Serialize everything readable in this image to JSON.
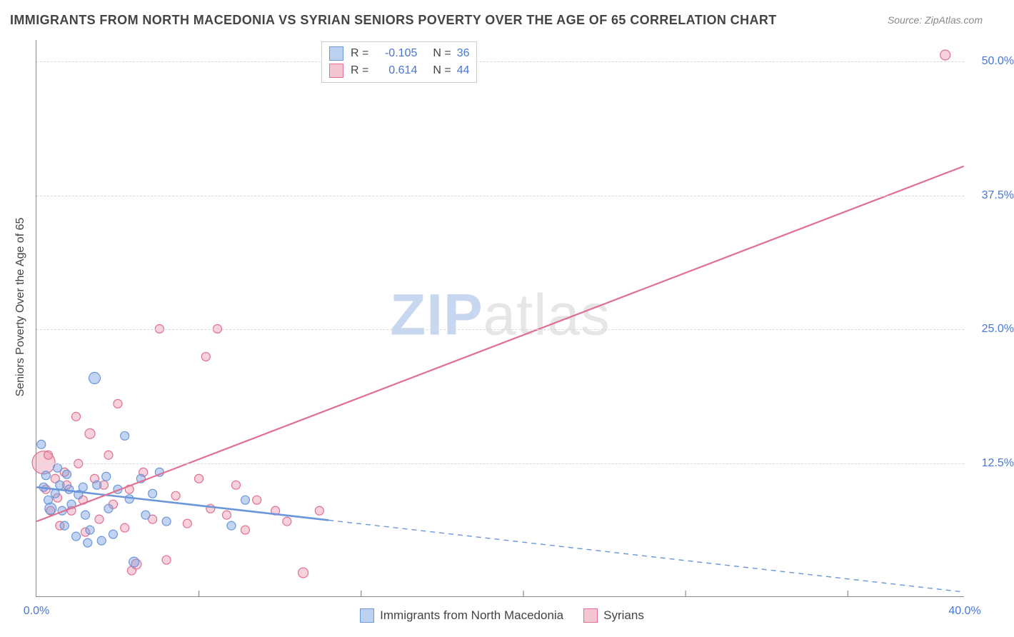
{
  "title": "IMMIGRANTS FROM NORTH MACEDONIA VS SYRIAN SENIORS POVERTY OVER THE AGE OF 65 CORRELATION CHART",
  "source": "Source: ZipAtlas.com",
  "y_axis_label": "Seniors Poverty Over the Age of 65",
  "watermark": {
    "zip": "ZIP",
    "atlas": "atlas"
  },
  "chart": {
    "type": "scatter",
    "xlim": [
      0,
      40
    ],
    "ylim": [
      0,
      52
    ],
    "x_ticks": [
      0,
      40
    ],
    "x_tick_labels": [
      "0.0%",
      "40.0%"
    ],
    "x_minor_ticks": [
      7,
      14,
      21,
      28,
      35
    ],
    "y_ticks": [
      12.5,
      25.0,
      37.5,
      50.0
    ],
    "y_tick_labels": [
      "12.5%",
      "25.0%",
      "37.5%",
      "50.0%"
    ],
    "background_color": "#ffffff",
    "grid_color": "#d8d8d8",
    "axis_color": "#888888",
    "series": [
      {
        "name": "Immigrants from North Macedonia",
        "color_fill": "rgba(120,160,225,0.45)",
        "color_stroke": "#6a96da",
        "swatch_fill": "#bcd0ef",
        "swatch_stroke": "#6a96da",
        "R": "-0.105",
        "N": "36",
        "trend": {
          "x1": 0,
          "y1": 10.2,
          "x2": 40,
          "y2": 0.4,
          "solid_to_x": 12.6
        },
        "points": [
          [
            0.2,
            14.2,
            6
          ],
          [
            0.3,
            10.2,
            6
          ],
          [
            0.4,
            11.3,
            6
          ],
          [
            0.5,
            9.0,
            6
          ],
          [
            0.6,
            8.2,
            8
          ],
          [
            0.8,
            9.6,
            6
          ],
          [
            0.9,
            12.0,
            6
          ],
          [
            1.0,
            10.4,
            6
          ],
          [
            1.1,
            8.0,
            6
          ],
          [
            1.2,
            6.6,
            6
          ],
          [
            1.3,
            11.4,
            6
          ],
          [
            1.4,
            10.0,
            6
          ],
          [
            1.5,
            8.6,
            6
          ],
          [
            1.7,
            5.6,
            6
          ],
          [
            1.8,
            9.5,
            6
          ],
          [
            2.0,
            10.2,
            6
          ],
          [
            2.1,
            7.6,
            6
          ],
          [
            2.2,
            5.0,
            6
          ],
          [
            2.3,
            6.2,
            6
          ],
          [
            2.5,
            20.4,
            8
          ],
          [
            2.6,
            10.4,
            6
          ],
          [
            2.8,
            5.2,
            6
          ],
          [
            3.0,
            11.2,
            6
          ],
          [
            3.1,
            8.2,
            6
          ],
          [
            3.3,
            5.8,
            6
          ],
          [
            3.5,
            10.0,
            6
          ],
          [
            3.8,
            15.0,
            6
          ],
          [
            4.0,
            9.1,
            6
          ],
          [
            4.2,
            3.2,
            7
          ],
          [
            4.5,
            11.0,
            6
          ],
          [
            4.7,
            7.6,
            6
          ],
          [
            5.0,
            9.6,
            6
          ],
          [
            5.3,
            11.6,
            6
          ],
          [
            5.6,
            7.0,
            6
          ],
          [
            8.4,
            6.6,
            6
          ],
          [
            9.0,
            9.0,
            6
          ]
        ]
      },
      {
        "name": "Syrians",
        "color_fill": "rgba(235,140,165,0.40)",
        "color_stroke": "#e0708f",
        "swatch_fill": "#f4c6d1",
        "swatch_stroke": "#e0708f",
        "R": "0.614",
        "N": "44",
        "trend": {
          "x1": 0,
          "y1": 7.0,
          "x2": 40,
          "y2": 40.2,
          "solid_to_x": 40
        },
        "points": [
          [
            0.3,
            12.5,
            16
          ],
          [
            0.4,
            10.0,
            6
          ],
          [
            0.5,
            13.2,
            6
          ],
          [
            0.6,
            8.0,
            6
          ],
          [
            0.8,
            11.0,
            6
          ],
          [
            0.9,
            9.2,
            6
          ],
          [
            1.0,
            6.6,
            6
          ],
          [
            1.2,
            11.6,
            6
          ],
          [
            1.3,
            10.4,
            6
          ],
          [
            1.5,
            8.0,
            6
          ],
          [
            1.7,
            16.8,
            6
          ],
          [
            1.8,
            12.4,
            6
          ],
          [
            2.0,
            9.0,
            6
          ],
          [
            2.1,
            6.0,
            6
          ],
          [
            2.3,
            15.2,
            7
          ],
          [
            2.5,
            11.0,
            6
          ],
          [
            2.7,
            7.2,
            6
          ],
          [
            2.9,
            10.4,
            6
          ],
          [
            3.1,
            13.2,
            6
          ],
          [
            3.3,
            8.6,
            6
          ],
          [
            3.5,
            18.0,
            6
          ],
          [
            3.8,
            6.4,
            6
          ],
          [
            4.0,
            10.0,
            6
          ],
          [
            4.1,
            2.4,
            6
          ],
          [
            4.3,
            3.0,
            7
          ],
          [
            4.6,
            11.6,
            6
          ],
          [
            5.0,
            7.2,
            6
          ],
          [
            5.3,
            25.0,
            6
          ],
          [
            5.6,
            3.4,
            6
          ],
          [
            6.0,
            9.4,
            6
          ],
          [
            6.5,
            6.8,
            6
          ],
          [
            7.0,
            11.0,
            6
          ],
          [
            7.3,
            22.4,
            6
          ],
          [
            7.5,
            8.2,
            6
          ],
          [
            7.8,
            25.0,
            6
          ],
          [
            8.2,
            7.6,
            6
          ],
          [
            8.6,
            10.4,
            6
          ],
          [
            9.0,
            6.2,
            6
          ],
          [
            9.5,
            9.0,
            6
          ],
          [
            10.3,
            8.0,
            6
          ],
          [
            10.8,
            7.0,
            6
          ],
          [
            11.5,
            2.2,
            7
          ],
          [
            12.2,
            8.0,
            6
          ],
          [
            39.2,
            50.6,
            7
          ]
        ]
      }
    ]
  },
  "legend_bottom": [
    {
      "label": "Immigrants from North Macedonia",
      "fill": "#bcd0ef",
      "stroke": "#6a96da"
    },
    {
      "label": "Syrians",
      "fill": "#f4c6d1",
      "stroke": "#e0708f"
    }
  ]
}
